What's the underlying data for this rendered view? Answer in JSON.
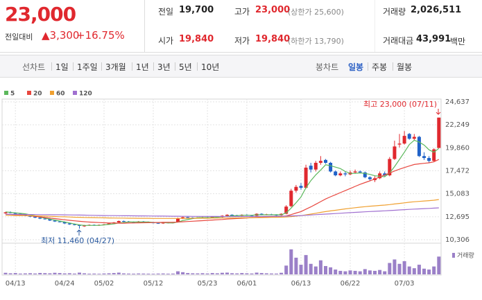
{
  "header": {
    "price": "23,000",
    "change_label": "전일대비",
    "change": "▲3,300",
    "change_pct": "+16.75%",
    "stats": [
      {
        "label": "전일",
        "value": "19,700"
      },
      {
        "label": "고가",
        "value": "23,000",
        "note": "(상한가 25,600)"
      },
      {
        "label": "거래량",
        "value": "2,026,511"
      },
      {
        "label": "시가",
        "value": "19,840"
      },
      {
        "label": "저가",
        "value": "19,840",
        "note": "(하한가 13,790)"
      },
      {
        "label": "거래대금",
        "value": "43,991",
        "unit": "백만"
      }
    ]
  },
  "tabs": {
    "line": [
      "선차트",
      "1일",
      "1주일",
      "3개월",
      "1년",
      "3년",
      "5년",
      "10년"
    ],
    "candle": [
      "봉차트",
      "일봉",
      "주봉",
      "월봉"
    ],
    "active": 1
  },
  "chart_data": {
    "type": "candlestick",
    "categories": [
      null,
      null,
      "04/13",
      null,
      null,
      null,
      null,
      null,
      null,
      null,
      null,
      null,
      "04/24",
      null,
      null,
      null,
      null,
      null,
      null,
      null,
      "05/02",
      null,
      null,
      null,
      null,
      null,
      null,
      null,
      null,
      null,
      "05/12",
      null,
      null,
      null,
      null,
      null,
      null,
      null,
      null,
      null,
      null,
      "05/23",
      null,
      null,
      null,
      null,
      null,
      null,
      null,
      "06/01",
      null,
      null,
      null,
      null,
      null,
      null,
      null,
      null,
      null,
      null,
      "06/13",
      null,
      null,
      null,
      null,
      null,
      null,
      null,
      null,
      null,
      "06/22",
      null,
      null,
      null,
      null,
      null,
      null,
      null,
      null,
      null,
      null,
      "07/03",
      null,
      null,
      null,
      null,
      null,
      null,
      null
    ],
    "open": [
      13050,
      13150,
      13100,
      13000,
      12950,
      12800,
      12700,
      12600,
      12500,
      12450,
      12300,
      12200,
      12150,
      12000,
      11900,
      11850,
      11700,
      11800,
      11850,
      11800,
      11850,
      11900,
      12000,
      12100,
      12250,
      12200,
      12150,
      12100,
      12200,
      12150,
      12100,
      12050,
      12000,
      12100,
      12050,
      12150,
      12500,
      12650,
      12600,
      12550,
      12600,
      12650,
      12600,
      12700,
      12650,
      12800,
      12900,
      12850,
      12800,
      12900,
      12850,
      12800,
      13000,
      12900,
      12950,
      12900,
      12850,
      13000,
      13800,
      15400,
      15900,
      15700,
      18000,
      17600,
      18300,
      18600,
      18300,
      17400,
      17000,
      17200,
      17100,
      17300,
      17400,
      17300,
      16800,
      16500,
      16700,
      17200,
      17000,
      18700,
      20200,
      20300,
      21300,
      20800,
      21000,
      19000,
      18800,
      18500,
      19840
    ],
    "high": [
      13200,
      13250,
      13150,
      13050,
      13000,
      12850,
      12750,
      12650,
      12550,
      12500,
      12350,
      12250,
      12200,
      12050,
      11950,
      11900,
      11850,
      11900,
      11900,
      11900,
      11950,
      12050,
      12150,
      12300,
      12300,
      12250,
      12200,
      12250,
      12250,
      12200,
      12150,
      12100,
      12150,
      12150,
      12150,
      12600,
      12700,
      12700,
      12650,
      12650,
      12700,
      12700,
      12750,
      12750,
      12850,
      12950,
      12950,
      12900,
      12950,
      12950,
      12900,
      13050,
      13050,
      13000,
      13000,
      12950,
      13050,
      13900,
      15600,
      16000,
      16200,
      18100,
      18300,
      18500,
      19000,
      18700,
      18400,
      17500,
      17400,
      17400,
      17500,
      17600,
      17500,
      17400,
      16900,
      16900,
      17400,
      17400,
      18900,
      20600,
      21300,
      21600,
      21400,
      21300,
      21100,
      19400,
      19000,
      19800,
      23000
    ],
    "low": [
      13000,
      13050,
      12950,
      12900,
      12750,
      12650,
      12550,
      12450,
      12400,
      12250,
      12150,
      12100,
      11950,
      11850,
      11800,
      11460,
      11650,
      11750,
      11750,
      11750,
      11800,
      11850,
      11950,
      12050,
      12150,
      12100,
      12050,
      12050,
      12100,
      12050,
      12000,
      11950,
      11950,
      12000,
      12000,
      12100,
      12450,
      12550,
      12500,
      12500,
      12550,
      12550,
      12550,
      12600,
      12600,
      12750,
      12800,
      12750,
      12750,
      12800,
      12750,
      12750,
      12850,
      12850,
      12850,
      12800,
      12800,
      12950,
      13700,
      15200,
      15500,
      15600,
      17300,
      17400,
      18100,
      18200,
      17300,
      16900,
      16900,
      16900,
      17000,
      17200,
      17200,
      16700,
      16400,
      16300,
      16600,
      16900,
      16900,
      18600,
      19900,
      20200,
      20700,
      20600,
      18900,
      18600,
      18300,
      18400,
      19840
    ],
    "close": [
      13150,
      13100,
      13000,
      12950,
      12800,
      12700,
      12600,
      12500,
      12450,
      12300,
      12200,
      12150,
      12000,
      11900,
      11850,
      11750,
      11800,
      11850,
      11800,
      11850,
      11900,
      12000,
      12100,
      12250,
      12200,
      12150,
      12100,
      12200,
      12150,
      12100,
      12050,
      12000,
      12100,
      12050,
      12100,
      12500,
      12650,
      12600,
      12550,
      12600,
      12650,
      12600,
      12700,
      12650,
      12800,
      12900,
      12850,
      12800,
      12900,
      12850,
      12800,
      13000,
      12900,
      12950,
      12900,
      12850,
      13000,
      13750,
      15400,
      15800,
      15700,
      17800,
      17600,
      18300,
      18500,
      18300,
      17400,
      17000,
      17200,
      17100,
      17300,
      17400,
      17300,
      16800,
      16600,
      16700,
      17200,
      17000,
      18700,
      20000,
      20300,
      21100,
      20800,
      21000,
      19000,
      18800,
      18500,
      19700,
      23000
    ],
    "up_color": "#e0282e",
    "down_color": "#2062c8",
    "ma": [
      {
        "name": "5",
        "color": "#5cb85c",
        "values": [
          13200,
          13150,
          13100,
          13050,
          13000,
          12900,
          12800,
          12650,
          12550,
          12450,
          12350,
          12250,
          12150,
          12050,
          11950,
          11850,
          11800,
          11800,
          11800,
          11800,
          11850,
          11900,
          11950,
          12050,
          12100,
          12150,
          12150,
          12150,
          12150,
          12150,
          12100,
          12100,
          12100,
          12050,
          12050,
          12150,
          12300,
          12400,
          12500,
          12600,
          12600,
          12600,
          12600,
          12650,
          12700,
          12750,
          12800,
          12800,
          12850,
          12850,
          12850,
          12900,
          12900,
          12900,
          12900,
          12900,
          12900,
          13100,
          13600,
          14150,
          14750,
          15700,
          16450,
          17050,
          17550,
          18100,
          18000,
          17850,
          17700,
          17400,
          17200,
          17200,
          17250,
          17200,
          17100,
          16950,
          16900,
          16850,
          17250,
          17900,
          18650,
          19400,
          20200,
          20650,
          20450,
          20150,
          19650,
          19400,
          19800
        ]
      },
      {
        "name": "20",
        "color": "#e8473f",
        "values": [
          12950,
          12930,
          12900,
          12870,
          12830,
          12780,
          12730,
          12680,
          12620,
          12560,
          12500,
          12440,
          12380,
          12320,
          12270,
          12220,
          12180,
          12140,
          12110,
          12090,
          12070,
          12050,
          12040,
          12030,
          12030,
          12040,
          12050,
          12060,
          12070,
          12080,
          12090,
          12100,
          12110,
          12110,
          12120,
          12140,
          12170,
          12200,
          12230,
          12260,
          12290,
          12320,
          12350,
          12380,
          12410,
          12450,
          12480,
          12510,
          12540,
          12570,
          12600,
          12630,
          12650,
          12680,
          12700,
          12710,
          12730,
          12780,
          12920,
          13080,
          13230,
          13480,
          13720,
          13990,
          14270,
          14540,
          14770,
          14980,
          15200,
          15410,
          15630,
          15850,
          16060,
          16250,
          16430,
          16620,
          16830,
          17030,
          17240,
          17450,
          17640,
          17810,
          17970,
          18130,
          18190,
          18250,
          18300,
          18400,
          18650
        ]
      },
      {
        "name": "60",
        "color": "#f0a030",
        "values": [
          12850,
          12840,
          12830,
          12820,
          12810,
          12800,
          12790,
          12770,
          12760,
          12740,
          12720,
          12700,
          12690,
          12670,
          12650,
          12640,
          12620,
          12610,
          12600,
          12590,
          12580,
          12570,
          12560,
          12550,
          12550,
          12540,
          12540,
          12530,
          12530,
          12530,
          12520,
          12520,
          12520,
          12520,
          12520,
          12520,
          12530,
          12530,
          12530,
          12540,
          12540,
          12540,
          12550,
          12550,
          12560,
          12560,
          12570,
          12570,
          12580,
          12580,
          12590,
          12600,
          12610,
          12620,
          12630,
          12640,
          12650,
          12670,
          12710,
          12760,
          12810,
          12890,
          12970,
          13060,
          13150,
          13230,
          13300,
          13370,
          13440,
          13510,
          13570,
          13630,
          13690,
          13740,
          13790,
          13830,
          13870,
          13910,
          13960,
          14020,
          14080,
          14140,
          14200,
          14250,
          14290,
          14330,
          14370,
          14410,
          14480
        ]
      },
      {
        "name": "120",
        "color": "#a070d0",
        "values": [
          12950,
          12945,
          12940,
          12935,
          12930,
          12925,
          12920,
          12915,
          12910,
          12905,
          12900,
          12895,
          12890,
          12885,
          12880,
          12870,
          12860,
          12850,
          12840,
          12830,
          12820,
          12815,
          12810,
          12805,
          12800,
          12795,
          12790,
          12785,
          12780,
          12775,
          12770,
          12765,
          12760,
          12755,
          12750,
          12745,
          12740,
          12740,
          12735,
          12735,
          12730,
          12730,
          12725,
          12725,
          12720,
          12720,
          12720,
          12720,
          12720,
          12720,
          12720,
          12725,
          12730,
          12735,
          12740,
          12745,
          12750,
          12760,
          12780,
          12800,
          12820,
          12850,
          12880,
          12910,
          12940,
          12970,
          13000,
          13030,
          13060,
          13090,
          13120,
          13150,
          13180,
          13210,
          13240,
          13260,
          13290,
          13310,
          13340,
          13370,
          13400,
          13430,
          13460,
          13490,
          13510,
          13540,
          13560,
          13590,
          13620
        ]
      }
    ],
    "volume": {
      "name": "거래량",
      "color": "#9b80c8",
      "values": [
        180000,
        120000,
        150000,
        90000,
        110000,
        130000,
        100000,
        160000,
        140000,
        120000,
        180000,
        150000,
        110000,
        130000,
        90000,
        200000,
        120000,
        80000,
        90000,
        70000,
        100000,
        120000,
        150000,
        200000,
        110000,
        90000,
        80000,
        100000,
        90000,
        80000,
        70000,
        90000,
        100000,
        80000,
        90000,
        350000,
        250000,
        150000,
        120000,
        110000,
        130000,
        100000,
        150000,
        120000,
        180000,
        200000,
        130000,
        110000,
        150000,
        120000,
        100000,
        200000,
        150000,
        120000,
        100000,
        90000,
        180000,
        1000000,
        2850000,
        1900000,
        1100000,
        2200000,
        1200000,
        900000,
        1600000,
        950000,
        800000,
        550000,
        400000,
        350000,
        450000,
        400000,
        350000,
        600000,
        450000,
        400000,
        500000,
        350000,
        1300000,
        1700000,
        1200000,
        1500000,
        900000,
        700000,
        1100000,
        650000,
        550000,
        900000,
        2026511
      ]
    },
    "volume_ylim": [
      0,
      3000000
    ],
    "ylim": [
      10306,
      24637
    ],
    "yticks": [
      {
        "value": 24637,
        "label": "24,637"
      },
      {
        "value": 22249,
        "label": "22,249"
      },
      {
        "value": 19860,
        "label": "19,860"
      },
      {
        "value": 17472,
        "label": "17,472"
      },
      {
        "value": 15083,
        "label": "15,083"
      },
      {
        "value": 12695,
        "label": "12,695"
      },
      {
        "value": 10306,
        "label": "10,306"
      }
    ],
    "grid": true,
    "annotations": [
      "최고 23,000 (07/11)",
      "최저 11,460 (04/27)"
    ]
  }
}
